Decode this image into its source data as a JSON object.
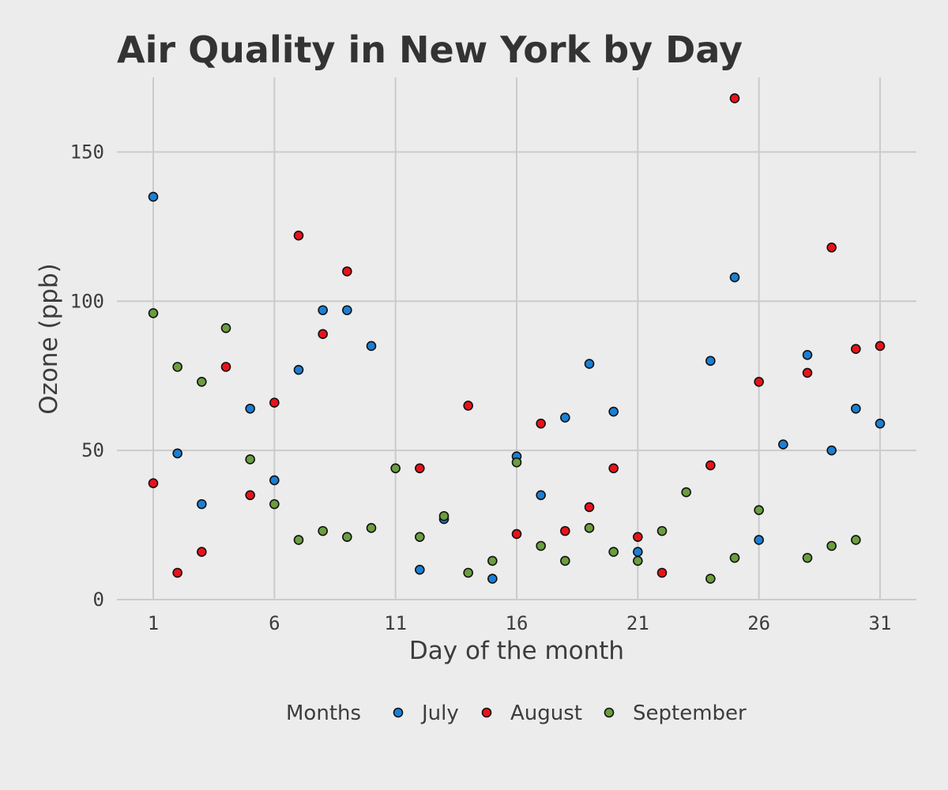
{
  "chart_data": {
    "type": "scatter",
    "title": "Air Quality in New York by Day",
    "xlabel": "Day of the month",
    "ylabel": "Ozone (ppb)",
    "xlim": [
      -0.5,
      32.5
    ],
    "ylim": [
      0,
      175
    ],
    "x_ticks": [
      1,
      6,
      11,
      16,
      21,
      26,
      31
    ],
    "y_ticks": [
      0,
      50,
      100,
      150
    ],
    "x_tick_labels": [
      "1",
      "6",
      "11",
      "16",
      "21",
      "26",
      "31"
    ],
    "y_tick_labels": [
      "0",
      "50",
      "100",
      "150"
    ],
    "grid": true,
    "legend": {
      "position": "bottom",
      "title": "Months"
    },
    "series": [
      {
        "name": "July",
        "color": "#1b7fd3",
        "points": [
          [
            1,
            135
          ],
          [
            2,
            49
          ],
          [
            3,
            32
          ],
          [
            5,
            64
          ],
          [
            6,
            40
          ],
          [
            7,
            77
          ],
          [
            8,
            97
          ],
          [
            9,
            97
          ],
          [
            10,
            85
          ],
          [
            12,
            10
          ],
          [
            13,
            27
          ],
          [
            15,
            7
          ],
          [
            16,
            48
          ],
          [
            17,
            35
          ],
          [
            18,
            61
          ],
          [
            19,
            79
          ],
          [
            20,
            63
          ],
          [
            21,
            16
          ],
          [
            24,
            80
          ],
          [
            25,
            108
          ],
          [
            26,
            20
          ],
          [
            27,
            52
          ],
          [
            28,
            82
          ],
          [
            29,
            50
          ],
          [
            30,
            64
          ],
          [
            31,
            59
          ]
        ]
      },
      {
        "name": "August",
        "color": "#e8131a",
        "points": [
          [
            1,
            39
          ],
          [
            2,
            9
          ],
          [
            3,
            16
          ],
          [
            4,
            78
          ],
          [
            5,
            35
          ],
          [
            6,
            66
          ],
          [
            7,
            122
          ],
          [
            8,
            89
          ],
          [
            9,
            110
          ],
          [
            12,
            44
          ],
          [
            14,
            65
          ],
          [
            16,
            22
          ],
          [
            17,
            59
          ],
          [
            18,
            23
          ],
          [
            19,
            31
          ],
          [
            20,
            44
          ],
          [
            21,
            21
          ],
          [
            22,
            9
          ],
          [
            24,
            45
          ],
          [
            25,
            168
          ],
          [
            26,
            73
          ],
          [
            28,
            76
          ],
          [
            29,
            118
          ],
          [
            30,
            84
          ],
          [
            31,
            85
          ]
        ]
      },
      {
        "name": "September",
        "color": "#6a9e3f",
        "points": [
          [
            1,
            96
          ],
          [
            2,
            78
          ],
          [
            3,
            73
          ],
          [
            4,
            91
          ],
          [
            5,
            47
          ],
          [
            6,
            32
          ],
          [
            7,
            20
          ],
          [
            8,
            23
          ],
          [
            9,
            21
          ],
          [
            10,
            24
          ],
          [
            11,
            44
          ],
          [
            12,
            21
          ],
          [
            13,
            28
          ],
          [
            14,
            9
          ],
          [
            15,
            13
          ],
          [
            16,
            46
          ],
          [
            17,
            18
          ],
          [
            18,
            13
          ],
          [
            19,
            24
          ],
          [
            20,
            16
          ],
          [
            21,
            13
          ],
          [
            22,
            23
          ],
          [
            23,
            36
          ],
          [
            24,
            7
          ],
          [
            25,
            14
          ],
          [
            26,
            30
          ],
          [
            28,
            14
          ],
          [
            29,
            18
          ],
          [
            30,
            20
          ]
        ]
      }
    ]
  }
}
